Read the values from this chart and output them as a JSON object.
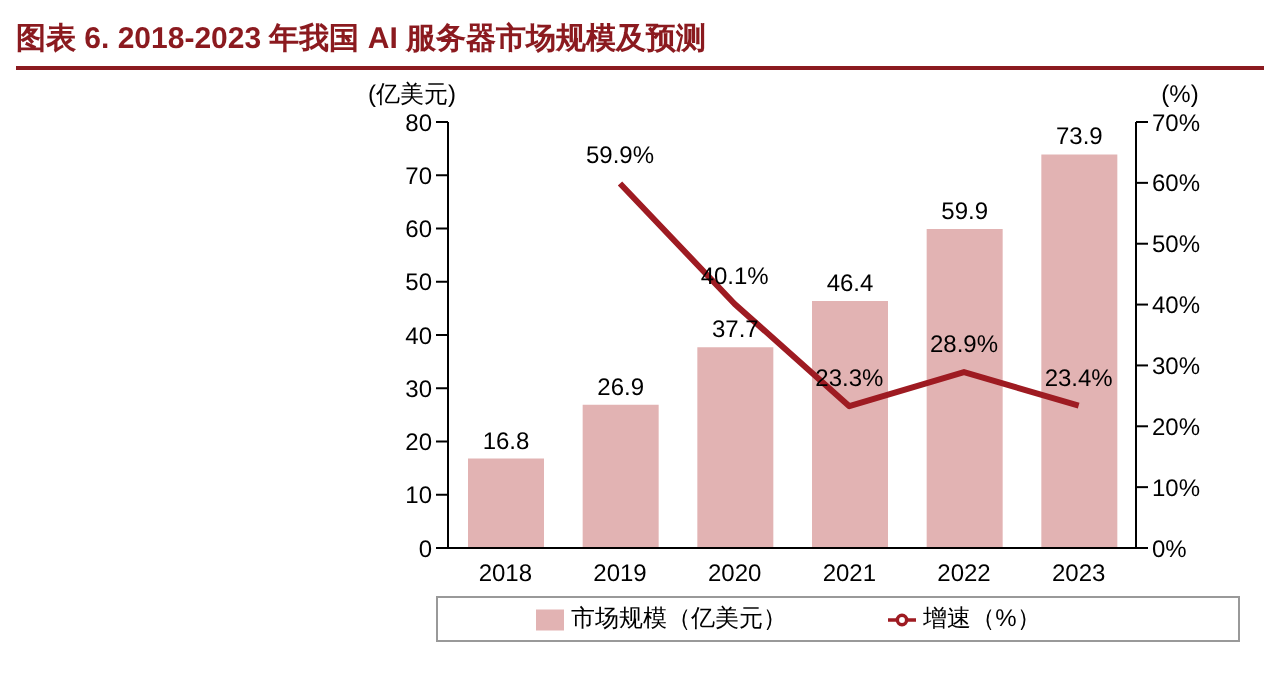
{
  "chart_data": {
    "type": "bar",
    "title": "图表 6. 2018-2023 年我国 AI 服务器市场规模及预测",
    "ylabel": "(亿美元)",
    "y2label": "(%)",
    "categories": [
      "2018",
      "2019",
      "2020",
      "2021",
      "2022",
      "2023"
    ],
    "series": [
      {
        "name": "市场规模（亿美元）",
        "color": "#e2b3b3",
        "values": [
          16.8,
          26.9,
          37.7,
          46.4,
          59.9,
          73.9
        ],
        "value_labels": [
          "16.8",
          "26.9",
          "37.7",
          "46.4",
          "59.9",
          "73.9"
        ]
      },
      {
        "name": "增速（%）",
        "type": "line",
        "axis": "y2",
        "color": "#9e1b22",
        "values": [
          null,
          59.9,
          40.1,
          23.3,
          28.9,
          23.4
        ],
        "value_labels": [
          null,
          "59.9%",
          "40.1%",
          "23.3%",
          "28.9%",
          "23.4%"
        ]
      }
    ],
    "ylim": [
      0,
      80
    ],
    "yticks": [
      0,
      10,
      20,
      30,
      40,
      50,
      60,
      70,
      80
    ],
    "y2lim": [
      0,
      70
    ],
    "y2ticks": [
      {
        "value": 0,
        "label": "0%"
      },
      {
        "value": 10,
        "label": "10%"
      },
      {
        "value": 20,
        "label": "20%"
      },
      {
        "value": 30,
        "label": "30%"
      },
      {
        "value": 40,
        "label": "40%"
      },
      {
        "value": 50,
        "label": "50%"
      },
      {
        "value": 60,
        "label": "60%"
      },
      {
        "value": 70,
        "label": "70%"
      }
    ],
    "grid": false,
    "legend": "bottom",
    "marker": "none",
    "line_style": "solid"
  }
}
